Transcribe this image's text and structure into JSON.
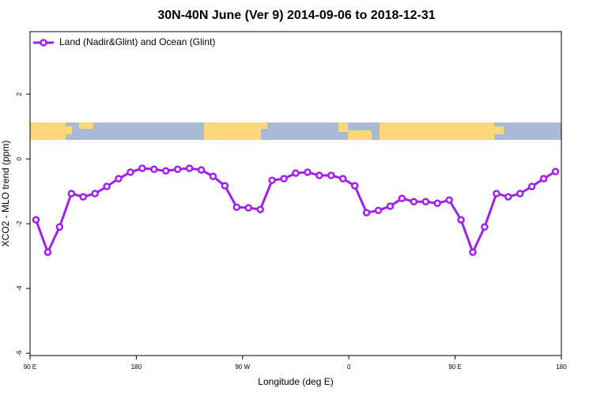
{
  "chart_data": {
    "type": "line",
    "title": "30N-40N June (Ver 9)   2014-09-06 to 2018-12-31",
    "x_label": "Longitude (deg E)",
    "y_label": "XCO2 - MLO trend (ppm)",
    "x": [
      95,
      105,
      115,
      125,
      135,
      145,
      155,
      165,
      175,
      185,
      195,
      205,
      215,
      225,
      235,
      245,
      255,
      265,
      275,
      285,
      295,
      305,
      315,
      325,
      335,
      345,
      355,
      365,
      375,
      385,
      395,
      405,
      415,
      425,
      435,
      445,
      455,
      465,
      475,
      485,
      495,
      505,
      515,
      525,
      535
    ],
    "series": [
      {
        "name": "Land (Nadir&Glint) and Ocean (Glint)",
        "color": "#a020f0",
        "values": [
          -1.88,
          -2.88,
          -2.1,
          -1.07,
          -1.17,
          -1.07,
          -0.85,
          -0.61,
          -0.41,
          -0.29,
          -0.32,
          -0.37,
          -0.32,
          -0.29,
          -0.34,
          -0.54,
          -0.83,
          -1.49,
          -1.51,
          -1.56,
          -0.66,
          -0.61,
          -0.44,
          -0.41,
          -0.51,
          -0.51,
          -0.61,
          -0.83,
          -1.66,
          -1.59,
          -1.46,
          -1.22,
          -1.32,
          -1.32,
          -1.37,
          -1.27,
          -1.88,
          -2.88,
          -2.1,
          -1.07,
          -1.17,
          -1.07,
          -0.85,
          -0.61,
          -0.39
        ]
      }
    ],
    "xlim": [
      90,
      540
    ],
    "xticks": [
      {
        "value": 90,
        "label": "90 E"
      },
      {
        "value": 180,
        "label": "180"
      },
      {
        "value": 270,
        "label": "90 W"
      },
      {
        "value": 360,
        "label": "0"
      },
      {
        "value": 450,
        "label": "90 E"
      },
      {
        "value": 540,
        "label": "180"
      }
    ],
    "ylim": [
      -6.07,
      3.93
    ],
    "yticks": [
      -6,
      -4,
      -2,
      0,
      2
    ],
    "legend": "top-left"
  }
}
